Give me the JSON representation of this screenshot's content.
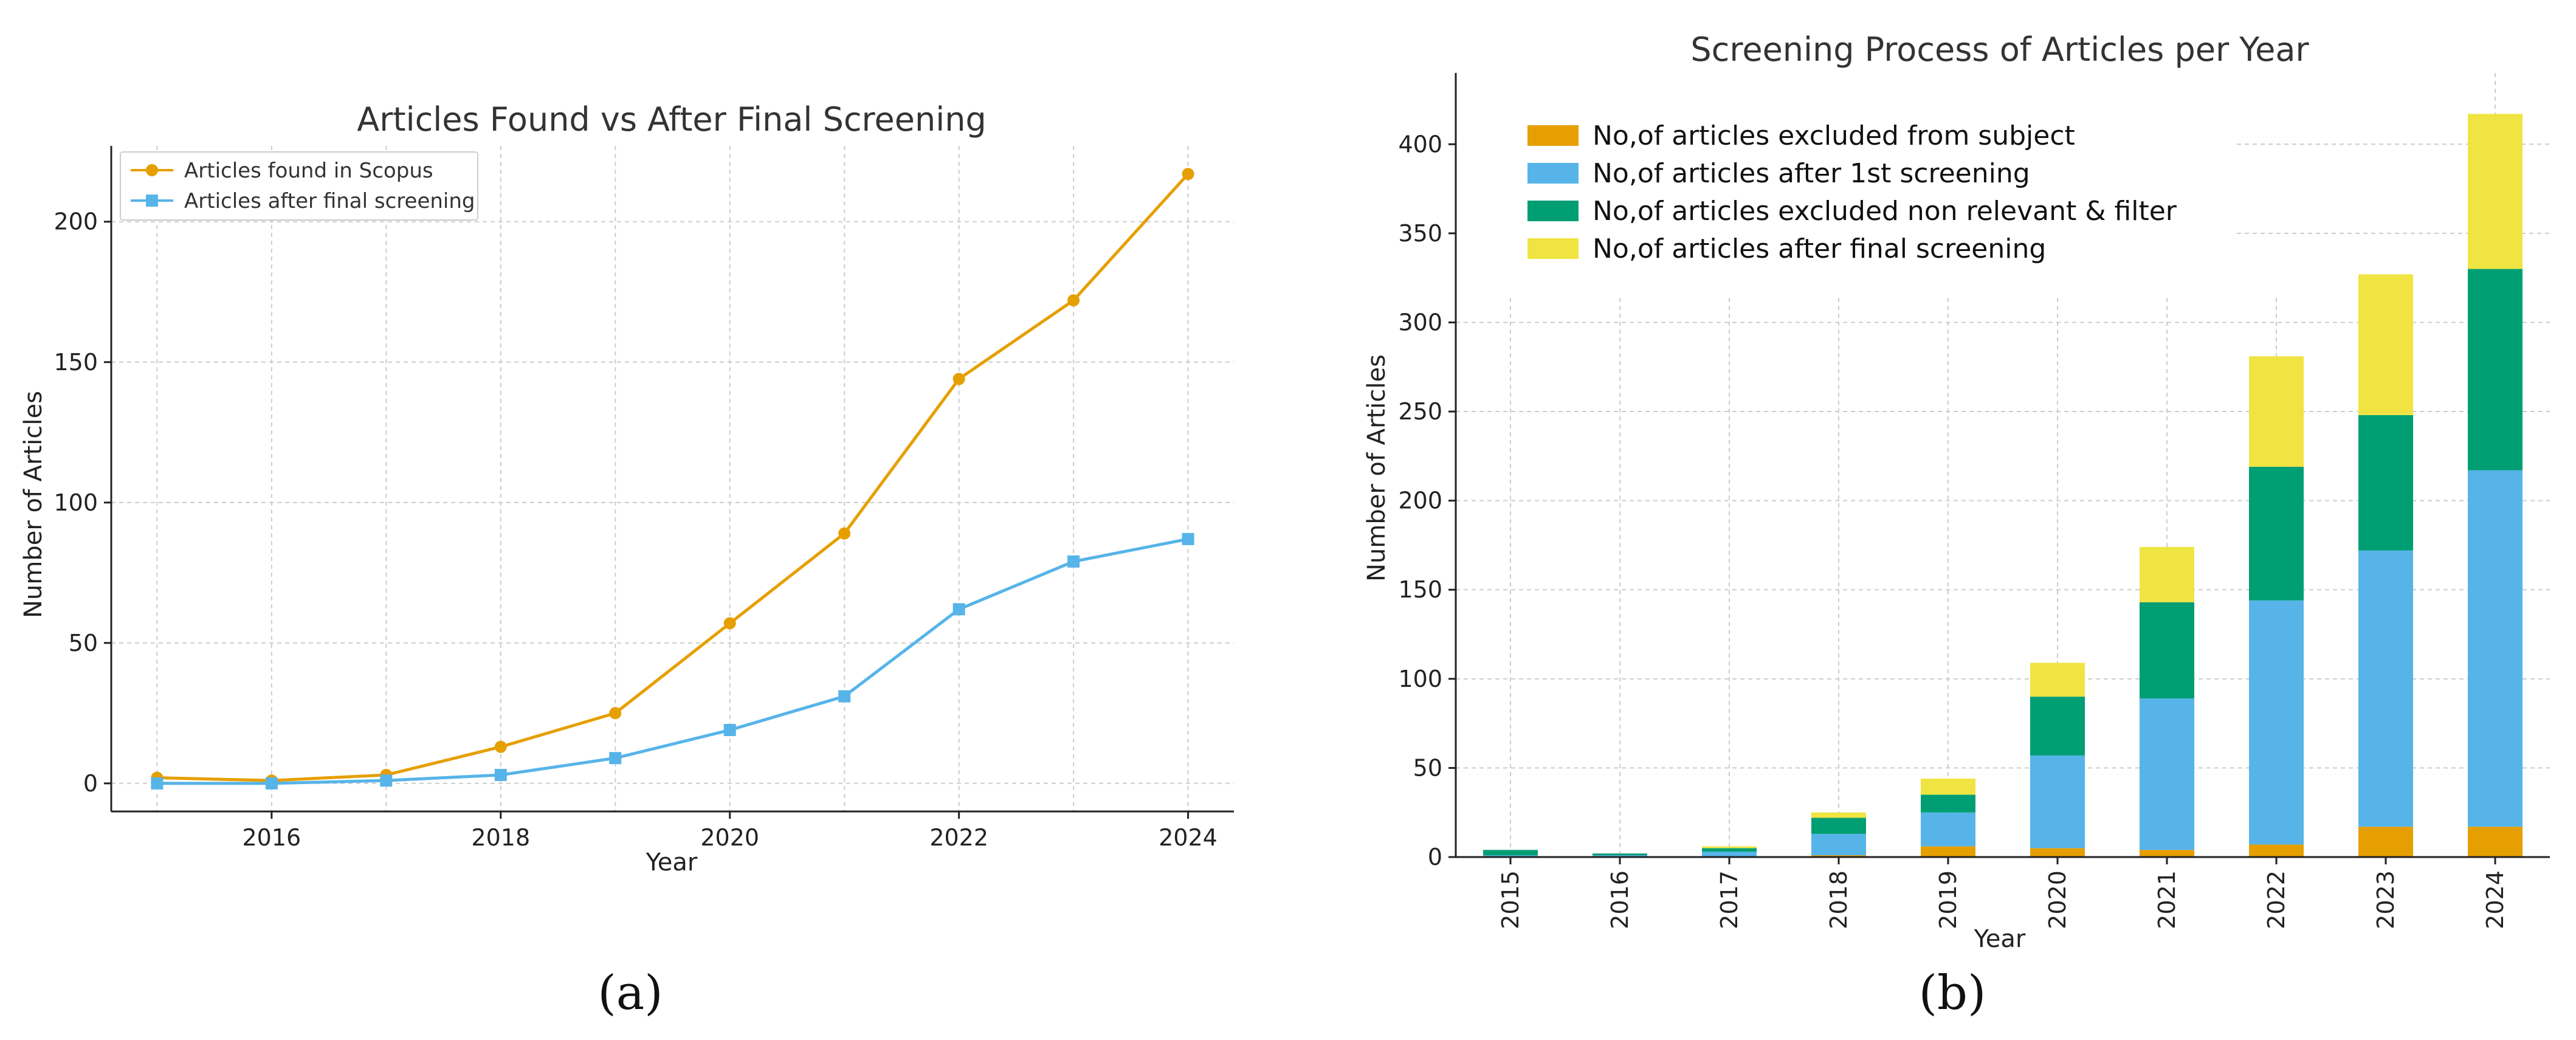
{
  "chart_data": [
    {
      "type": "line",
      "title": "Articles Found vs After Final Screening",
      "xlabel": "Year",
      "ylabel": "Number of Articles",
      "panel_label": "(a)",
      "xlim": [
        2014.6,
        2024.4
      ],
      "ylim": [
        -10,
        227
      ],
      "x_ticks": [
        2016,
        2018,
        2020,
        2022,
        2024
      ],
      "y_ticks": [
        0,
        50,
        100,
        150,
        200
      ],
      "grid": true,
      "legend_position": "top-left",
      "x": [
        2015,
        2016,
        2017,
        2018,
        2019,
        2020,
        2021,
        2022,
        2023,
        2024
      ],
      "series": [
        {
          "name": "Articles found in Scopus",
          "marker": "circle",
          "color": "#E69F00",
          "values": [
            2,
            1,
            3,
            13,
            25,
            57,
            89,
            144,
            172,
            217
          ]
        },
        {
          "name": "Articles after final screening",
          "marker": "square",
          "color": "#56B4E9",
          "values": [
            0,
            0,
            1,
            3,
            9,
            19,
            31,
            62,
            79,
            87
          ]
        }
      ]
    },
    {
      "type": "bar",
      "stacked": true,
      "title": "Screening Process of Articles per Year",
      "xlabel": "Year",
      "ylabel": "Number of Articles",
      "panel_label": "(b)",
      "ylim": [
        0,
        440
      ],
      "y_ticks": [
        0,
        50,
        100,
        150,
        200,
        250,
        300,
        350,
        400
      ],
      "grid": true,
      "legend_position": "top-left",
      "categories": [
        "2015",
        "2016",
        "2017",
        "2018",
        "2019",
        "2020",
        "2021",
        "2022",
        "2023",
        "2024"
      ],
      "series": [
        {
          "name": "No,of articles excluded from subject",
          "color": "#E69F00",
          "values": [
            0,
            0,
            0,
            1,
            6,
            5,
            4,
            7,
            17,
            17
          ]
        },
        {
          "name": "No,of articles after 1st screening",
          "color": "#56B4E9",
          "values": [
            1,
            1,
            3,
            12,
            19,
            52,
            85,
            137,
            155,
            200
          ]
        },
        {
          "name": "No,of articles excluded non relevant & filter",
          "color": "#009E73",
          "values": [
            3,
            1,
            2,
            9,
            10,
            33,
            54,
            75,
            76,
            113
          ]
        },
        {
          "name": "No,of articles after final screening",
          "color": "#F0E442",
          "values": [
            0,
            0,
            1,
            3,
            9,
            19,
            31,
            62,
            79,
            87
          ]
        }
      ]
    }
  ]
}
